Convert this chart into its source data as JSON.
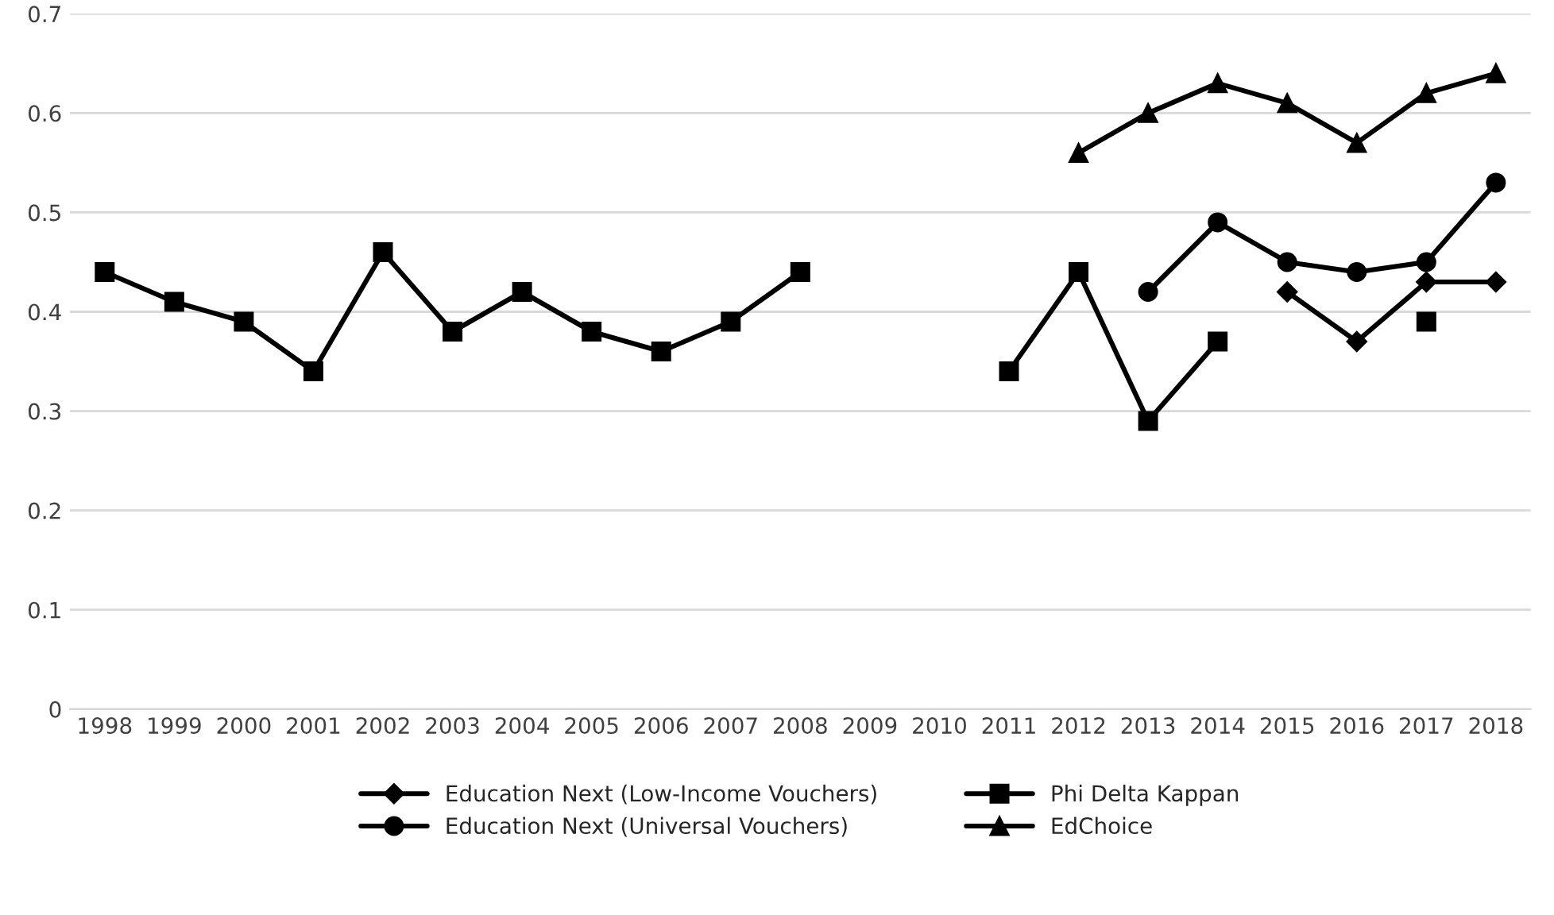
{
  "chart_data": {
    "type": "line",
    "categories": [
      "1998",
      "1999",
      "2000",
      "2001",
      "2002",
      "2003",
      "2004",
      "2005",
      "2006",
      "2007",
      "2008",
      "2009",
      "2010",
      "2011",
      "2012",
      "2013",
      "2014",
      "2015",
      "2016",
      "2017",
      "2018"
    ],
    "series": [
      {
        "name": "Education Next (Low-Income Vouchers)",
        "color": "#000000",
        "marker": "diamond",
        "values": [
          null,
          null,
          null,
          null,
          null,
          null,
          null,
          null,
          null,
          null,
          null,
          null,
          null,
          null,
          null,
          null,
          null,
          0.42,
          0.37,
          0.43,
          0.43
        ]
      },
      {
        "name": "Education Next (Universal Vouchers)",
        "color": "#000000",
        "marker": "circle",
        "values": [
          null,
          null,
          null,
          null,
          null,
          null,
          null,
          null,
          null,
          null,
          null,
          null,
          null,
          null,
          null,
          0.42,
          0.49,
          0.45,
          0.44,
          0.45,
          0.53
        ]
      },
      {
        "name": "Phi Delta Kappan",
        "color": "#000000",
        "marker": "square",
        "values": [
          0.44,
          0.41,
          0.39,
          0.34,
          0.46,
          0.38,
          0.42,
          0.38,
          0.36,
          0.39,
          0.44,
          null,
          null,
          0.34,
          0.44,
          0.29,
          0.37,
          null,
          null,
          0.39,
          null
        ]
      },
      {
        "name": "EdChoice",
        "color": "#000000",
        "marker": "triangle",
        "values": [
          null,
          null,
          null,
          null,
          null,
          null,
          null,
          null,
          null,
          null,
          null,
          null,
          null,
          null,
          0.56,
          0.6,
          0.63,
          0.61,
          0.57,
          0.62,
          0.64
        ]
      }
    ],
    "ylim": [
      0,
      0.7
    ],
    "yticks": [
      {
        "value": 0,
        "label": "0"
      },
      0.1,
      0.2,
      0.3,
      0.4,
      0.5,
      0.6,
      0.7
    ],
    "grid": "y",
    "legend": "bottom",
    "line_style": "solid"
  }
}
